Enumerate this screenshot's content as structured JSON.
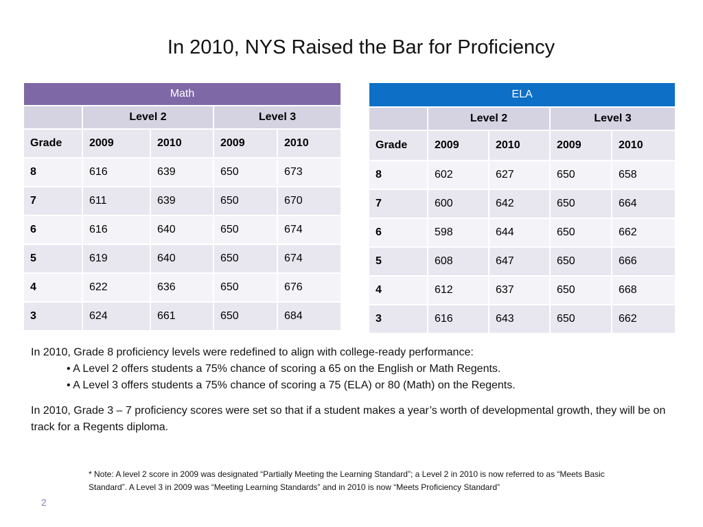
{
  "slide": {
    "title": "In 2010, NYS Raised the Bar for Proficiency",
    "page_number": "2"
  },
  "math_table": {
    "title": "Math",
    "level2": "Level 2",
    "level3": "Level 3",
    "headers": [
      "Grade",
      "2009",
      "2010",
      "2009",
      "2010"
    ],
    "rows": [
      [
        "8",
        "616",
        "639",
        "650",
        "673"
      ],
      [
        "7",
        "611",
        "639",
        "650",
        "670"
      ],
      [
        "6",
        "616",
        "640",
        "650",
        "674"
      ],
      [
        "5",
        "619",
        "640",
        "650",
        "674"
      ],
      [
        "4",
        "622",
        "636",
        "650",
        "676"
      ],
      [
        "3",
        "624",
        "661",
        "650",
        "684"
      ]
    ]
  },
  "ela_table": {
    "title": "ELA",
    "level2": "Level 2",
    "level3": "Level 3",
    "headers": [
      "Grade",
      "2009",
      "2010",
      "2009",
      "2010"
    ],
    "rows": [
      [
        "8",
        "602",
        "627",
        "650",
        "658"
      ],
      [
        "7",
        "600",
        "642",
        "650",
        "664"
      ],
      [
        "6",
        "598",
        "644",
        "650",
        "662"
      ],
      [
        "5",
        "608",
        "647",
        "650",
        "666"
      ],
      [
        "4",
        "612",
        "637",
        "650",
        "668"
      ],
      [
        "3",
        "616",
        "643",
        "650",
        "662"
      ]
    ]
  },
  "body": {
    "intro": "In 2010, Grade 8 proficiency levels were redefined to align with college-ready performance:",
    "bullet1": "• A Level 2 offers students a 75% chance of scoring a 65 on the English or Math Regents.",
    "bullet2": "• A Level 3 offers students a 75% chance of scoring a 75 (ELA) or 80 (Math) on the Regents.",
    "para2": "In 2010, Grade 3 – 7 proficiency scores were set so that if a student makes a year’s worth of developmental growth, they will be on track for a Regents diploma."
  },
  "note": {
    "line1": "* Note: A level 2 score in 2009 was designated “Partially Meeting the Learning Standard”; a Level 2  in 2010 is now referred to as “Meets Basic",
    "line2": "Standard”. A Level 3 in 2009 was “Meeting Learning Standards” and  in 2010 is now “Meets Proficiency Standard”"
  }
}
